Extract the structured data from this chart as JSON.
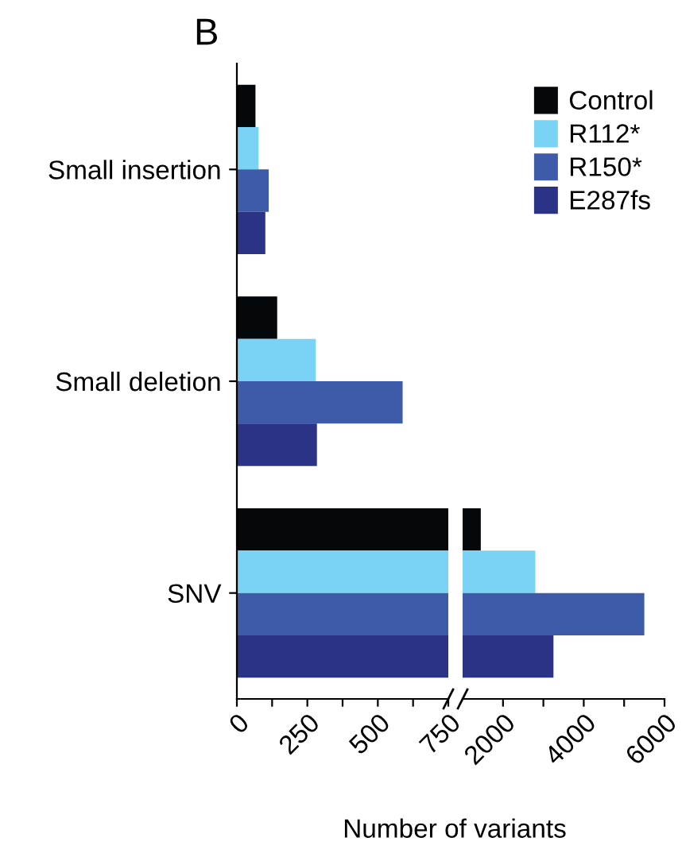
{
  "chart_data": [
    {
      "type": "bar",
      "orientation": "horizontal",
      "categories": [
        "Small insertion",
        "Small deletion",
        "SNV"
      ],
      "series": [
        {
          "color": "#05080a",
          "values": [
            66,
            143,
            750
          ]
        },
        {
          "color": "#7ad3f5",
          "values": [
            77,
            280,
            750
          ]
        },
        {
          "color": "#3d5ba8",
          "values": [
            113,
            588,
            750
          ]
        },
        {
          "color": "#2a3386",
          "values": [
            101,
            284,
            750
          ]
        }
      ],
      "xlim": [
        0,
        750
      ],
      "xticks": [
        0,
        {
          "value": 125,
          "label": null
        },
        250,
        {
          "value": 375,
          "label": null
        },
        500,
        {
          "value": 625,
          "label": null
        },
        750
      ],
      "xlabel": "Number of variants",
      "annotations": [
        "B"
      ],
      "grid": false
    },
    {
      "type": "bar",
      "orientation": "horizontal",
      "categories": [
        null,
        null,
        null
      ],
      "series": [
        {
          "name": "Control",
          "color": "#05080a",
          "values": [
            null,
            null,
            1450
          ]
        },
        {
          "name": "R112*",
          "color": "#7ad3f5",
          "values": [
            null,
            null,
            2800
          ]
        },
        {
          "name": "R150*",
          "color": "#3d5ba8",
          "values": [
            null,
            null,
            5500
          ]
        },
        {
          "name": "E287fs",
          "color": "#2a3386",
          "values": [
            null,
            null,
            3250
          ]
        }
      ],
      "xlim": [
        1000,
        6000
      ],
      "xticks": [
        2000,
        {
          "value": 3000,
          "label": null
        },
        4000,
        {
          "value": 5000,
          "label": null
        },
        6000
      ],
      "tick_labels": "x",
      "legend": "top right",
      "grid": false
    }
  ]
}
